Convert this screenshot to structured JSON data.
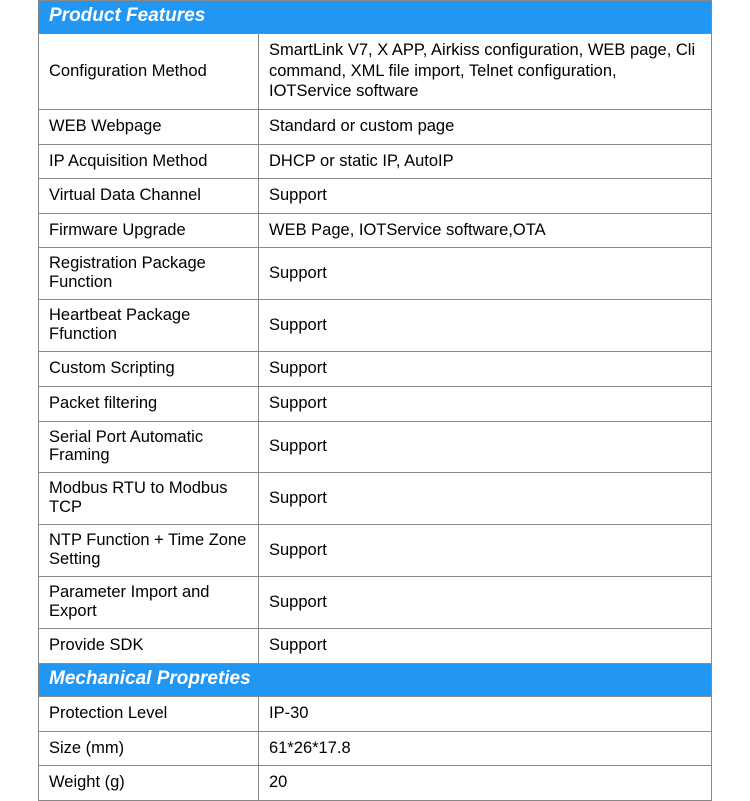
{
  "colors": {
    "header_bg": "#2196f3",
    "header_text": "#ffffff",
    "border": "#888888",
    "bg": "#ffffff",
    "text": "#000000"
  },
  "sections": [
    {
      "title": "Product Features",
      "rows": [
        {
          "k": "Configuration Method",
          "v": "SmartLink V7, X APP, Airkiss configuration, WEB page, Cli command, XML file import, Telnet configuration, IOTService software"
        },
        {
          "k": "WEB Webpage",
          "v": "Standard or custom page"
        },
        {
          "k": "IP Acquisition Method",
          "v": "DHCP or static IP, AutoIP"
        },
        {
          "k": "Virtual Data Channel",
          "v": "Support"
        },
        {
          "k": "Firmware Upgrade",
          "v": "WEB Page, IOTService software,OTA"
        },
        {
          "k": "Registration Package Function",
          "v": "Support"
        },
        {
          "k": "Heartbeat Package Ffunction",
          "v": "Support"
        },
        {
          "k": "Custom Scripting",
          "v": "Support"
        },
        {
          "k": "Packet filtering",
          "v": "Support"
        },
        {
          "k": "Serial Port Automatic Framing",
          "v": "Support"
        },
        {
          "k": "Modbus RTU to Modbus TCP",
          "v": "Support"
        },
        {
          "k": "NTP Function + Time Zone Setting",
          "v": "Support"
        },
        {
          "k": "Parameter Import and Export",
          "v": "Support"
        },
        {
          "k": "Provide SDK",
          "v": "Support"
        }
      ]
    },
    {
      "title": "Mechanical Propreties",
      "rows": [
        {
          "k": "Protection Level",
          "v": "IP-30"
        },
        {
          "k": "Size (mm)",
          "v": "61*26*17.8"
        },
        {
          "k": "Weight (g)",
          "v": "20"
        }
      ]
    }
  ]
}
